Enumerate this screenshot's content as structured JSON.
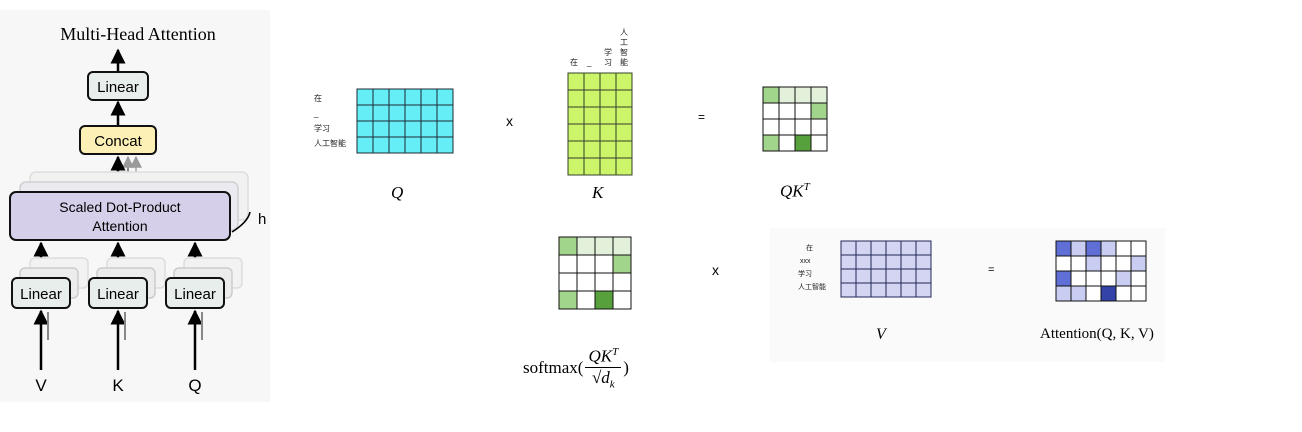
{
  "mha": {
    "title": "Multi-Head Attention",
    "linear_top": "Linear",
    "concat": "Concat",
    "sdpa_line1": "Scaled Dot-Product",
    "sdpa_line2": "Attention",
    "heads": "h",
    "linear_v": "Linear",
    "linear_k": "Linear",
    "linear_q": "Linear",
    "input_v": "V",
    "input_k": "K",
    "input_q": "Q"
  },
  "row1": {
    "q_tokens": [
      "在",
      "_",
      "学习",
      "人工智能"
    ],
    "k_tokens": [
      "在",
      "_",
      "学习",
      "人工智能"
    ],
    "k_tokens_vertical": [
      [
        "在"
      ],
      [
        "_"
      ],
      [
        "学",
        "习"
      ],
      [
        "人",
        "工",
        "智",
        "能"
      ]
    ],
    "op_multiply": "x",
    "op_equals": "=",
    "q_label": "Q",
    "k_label": "K",
    "qkt_label_base": "QK",
    "qkt_label_sup": "T"
  },
  "row2": {
    "softmax_prefix": "softmax(",
    "softmax_num_base": "QK",
    "softmax_num_sup": "T",
    "softmax_den": "d",
    "softmax_den_sub": "k",
    "softmax_suffix": ")",
    "op_multiply": "x",
    "op_equals": "=",
    "v_tokens": [
      "在",
      "xxx",
      "学习",
      "人工智能"
    ],
    "v_label": "V",
    "attention_label": "Attention(Q, K, V)"
  },
  "colors": {
    "q_cell": "#66eef6",
    "k_cell": "#ccf56a",
    "v_cell": "#d4d5f3",
    "green_light": "#e4f1da",
    "green_mid": "#a2d58c",
    "green_dark": "#57a13d",
    "blue_dark": "#3343a7",
    "blue_mid": "#5f6fd6",
    "blue_light": "#c8cdf1",
    "concat_fill": "#fcf0b6",
    "sdpa_fill": "#d6cfe9",
    "linear_fill": "#e8eeec"
  }
}
